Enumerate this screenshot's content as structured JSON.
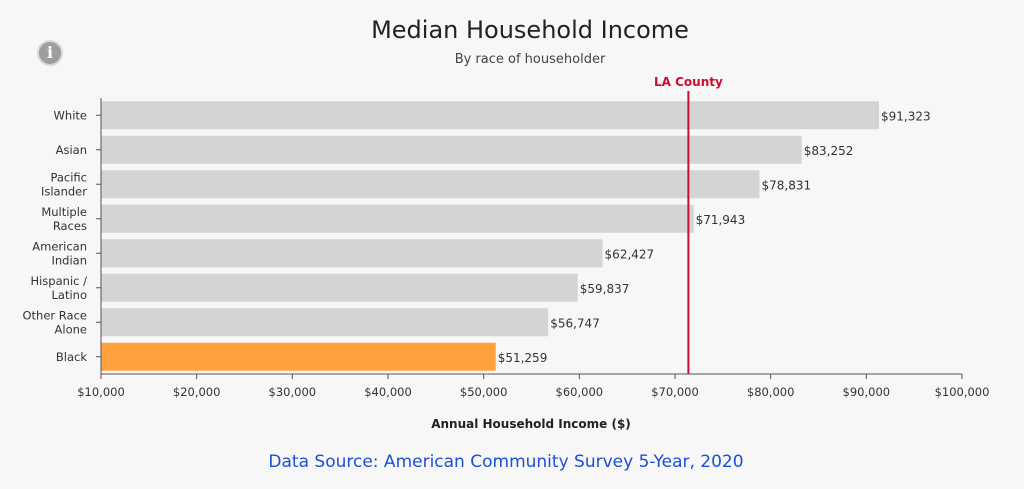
{
  "info_icon": "info-icon",
  "chart_data": {
    "type": "bar",
    "orientation": "horizontal",
    "title": "Median Household Income",
    "subtitle": "By race of householder",
    "xlabel": "Annual Household Income ($)",
    "ylabel": "",
    "xlim": [
      10000,
      100000
    ],
    "x_ticks": [
      10000,
      20000,
      30000,
      40000,
      50000,
      60000,
      70000,
      80000,
      90000,
      100000
    ],
    "x_tick_labels": [
      "$10,000",
      "$20,000",
      "$30,000",
      "$40,000",
      "$50,000",
      "$60,000",
      "$70,000",
      "$80,000",
      "$90,000",
      "$100,000"
    ],
    "categories": [
      [
        "White"
      ],
      [
        "Asian"
      ],
      [
        "Pacific",
        "Islander"
      ],
      [
        "Multiple",
        "Races"
      ],
      [
        "American",
        "Indian"
      ],
      [
        "Hispanic /",
        "Latino"
      ],
      [
        "Other Race",
        "Alone"
      ],
      [
        "Black"
      ]
    ],
    "values": [
      91323,
      83252,
      78831,
      71943,
      62427,
      59837,
      56747,
      51259
    ],
    "value_labels": [
      "$91,323",
      "$83,252",
      "$78,831",
      "$71,943",
      "$62,427",
      "$59,837",
      "$56,747",
      "$51,259"
    ],
    "highlight_index": 7,
    "bar_color": "#d4d4d4",
    "highlight_color": "#ffa13d",
    "reference_line": {
      "label": "LA County",
      "value": 71400,
      "color": "#c8102e"
    },
    "grid": false
  },
  "source": "Data Source: American Community Survey 5-Year, 2020"
}
